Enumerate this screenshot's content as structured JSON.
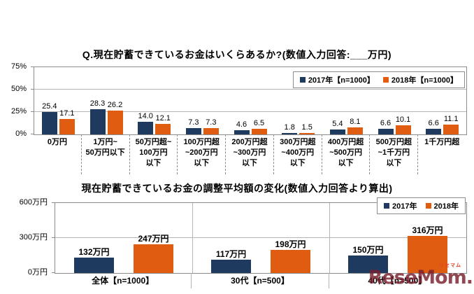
{
  "watermark": {
    "brand": "ReseMom.",
    "ruby": "リセマム"
  },
  "chart_data": [
    {
      "type": "bar",
      "title": "Q.現在貯蓄できているお金はいくらあるか?(数値入力回答:___万円)",
      "categories": [
        "0万円",
        "1万円~\n50万円以下",
        "50万円超~\n100万円\n以下",
        "100万円超\n~200万円\n以下",
        "200万円超\n~300万円\n以下",
        "300万円超\n~400万円\n以下",
        "400万円超\n~500万円\n以下",
        "500万円超\n~1千万円\n以下",
        "1千万円超"
      ],
      "series": [
        {
          "name": "2017年【n=1000】",
          "color": "#1F3A5F",
          "values": [
            25.4,
            28.3,
            14.0,
            7.3,
            4.6,
            1.8,
            5.4,
            6.6,
            6.6
          ],
          "labels": [
            "25.4",
            "28.3",
            "14.0",
            "7.3",
            "4.6",
            "1.8",
            "5.4",
            "6.6",
            "6.6"
          ]
        },
        {
          "name": "2018年【n=1000】",
          "color": "#E05C10",
          "values": [
            17.1,
            26.2,
            12.1,
            7.3,
            6.5,
            1.5,
            8.1,
            10.1,
            11.1
          ],
          "labels": [
            "17.1",
            "26.2",
            "12.1",
            "7.3",
            "6.5",
            "1.5",
            "8.1",
            "10.1",
            "11.1"
          ]
        }
      ],
      "ylabel": "%",
      "ylim": [
        0,
        75
      ],
      "yticks": [
        {
          "v": 0,
          "label": "0%"
        },
        {
          "v": 25,
          "label": "25%"
        },
        {
          "v": 50,
          "label": "50%"
        },
        {
          "v": 75,
          "label": "75%"
        }
      ],
      "gridlines": [
        25,
        50
      ],
      "category_separators": false,
      "grid": "horizontal",
      "legend_position": "top-right-inside"
    },
    {
      "type": "bar",
      "title": "現在貯蓄できているお金の調整平均額の変化(数値入力回答より算出)",
      "categories": [
        "全体【n=1000】",
        "30代【n=500】",
        "40代【n=500】"
      ],
      "series": [
        {
          "name": "2017年",
          "color": "#1F3A5F",
          "values": [
            132,
            117,
            150
          ],
          "labels": [
            "132万円",
            "117万円",
            "150万円"
          ]
        },
        {
          "name": "2018年",
          "color": "#E05C10",
          "values": [
            247,
            198,
            316
          ],
          "labels": [
            "247万円",
            "198万円",
            "316万円"
          ]
        }
      ],
      "ylabel": "万円",
      "ylim": [
        0,
        600
      ],
      "yticks": [
        {
          "v": 0,
          "label": "0万円"
        },
        {
          "v": 300,
          "label": "300万円"
        },
        {
          "v": 600,
          "label": "600万円"
        }
      ],
      "gridlines": [
        300
      ],
      "category_separators": true,
      "grid": "horizontal",
      "legend_position": "top-right-inside"
    }
  ]
}
